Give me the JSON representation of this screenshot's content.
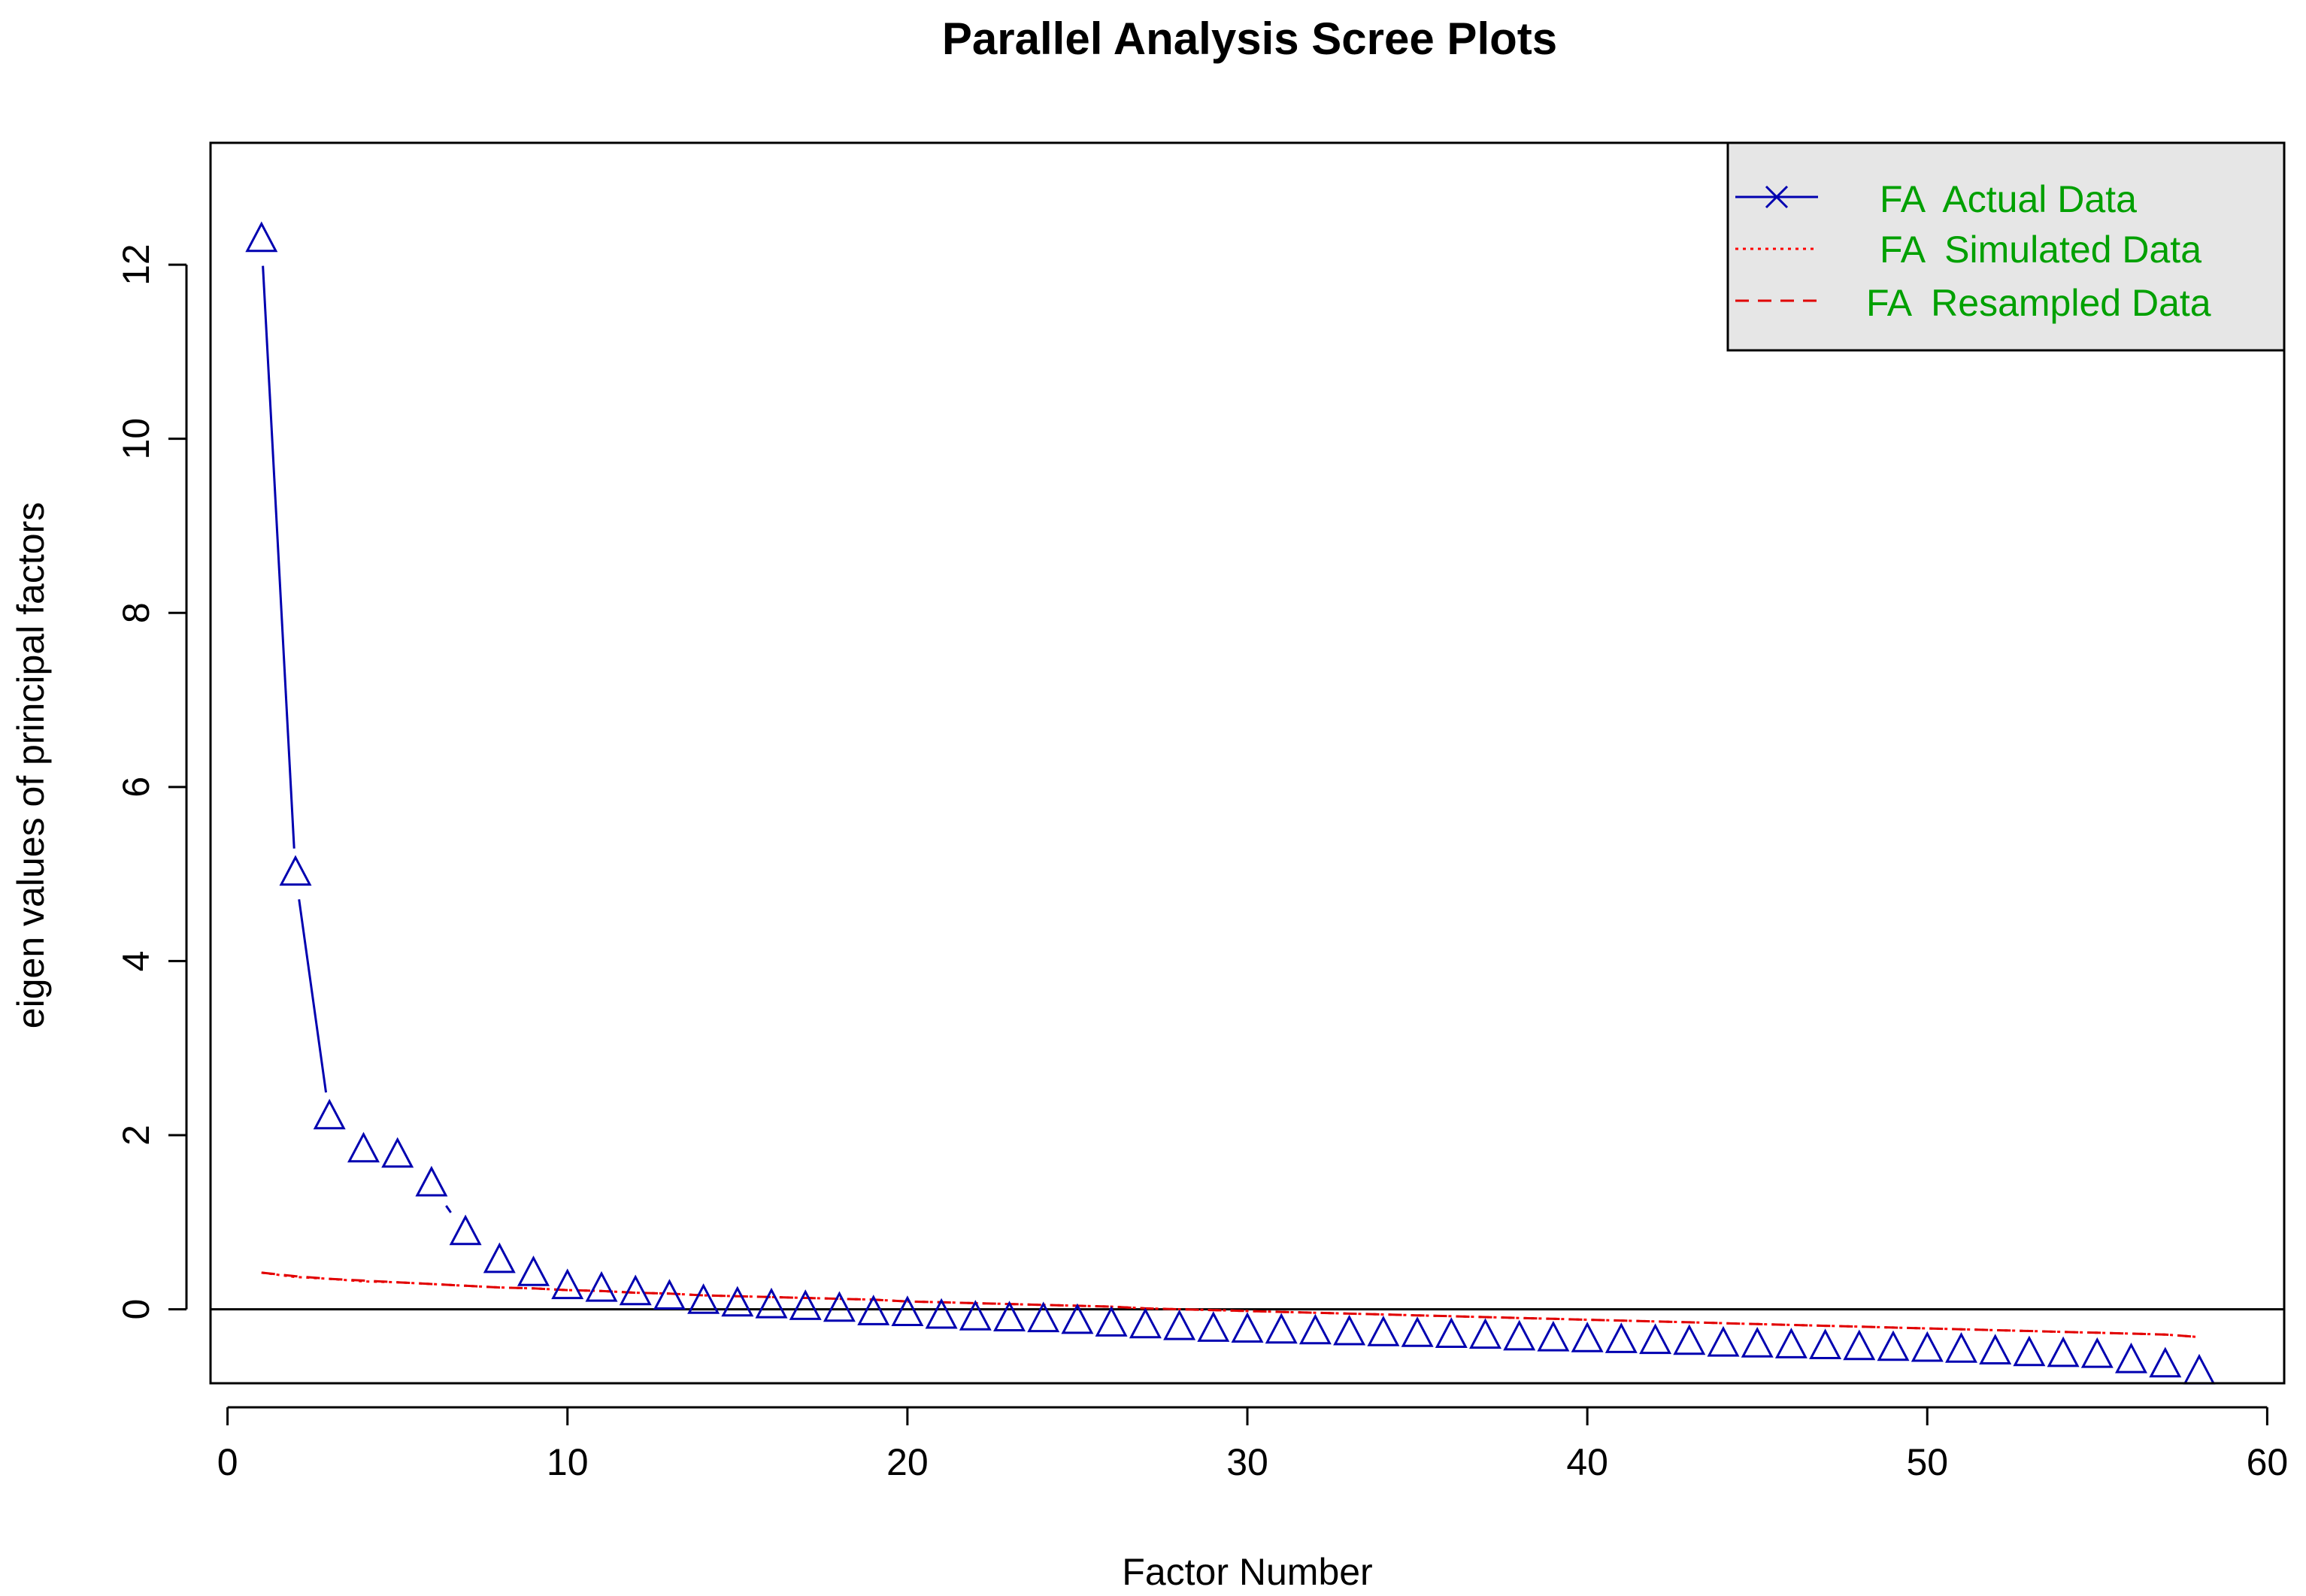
{
  "chart_data": {
    "type": "line",
    "title": "Parallel Analysis Scree Plots",
    "xlabel": "Factor Number",
    "ylabel": "eigen values of principal factors",
    "xlim": [
      -0.5,
      60.5
    ],
    "ylim": [
      -0.85,
      13.4
    ],
    "x_ticks": [
      0,
      10,
      20,
      30,
      40,
      50,
      60
    ],
    "y_ticks": [
      0,
      2,
      4,
      6,
      8,
      10,
      12
    ],
    "x_tick_labels": [
      "0",
      "10",
      "20",
      "30",
      "40",
      "50",
      "60"
    ],
    "y_tick_labels": [
      "0",
      "2",
      "4",
      "6",
      "8",
      "10",
      "12"
    ],
    "reference_line_y": 0,
    "legend_position": "top-right",
    "colors": {
      "actual": "#0000b0",
      "simulated": "#ff0000",
      "resampled": "#e00000",
      "legend_text": "#00a000",
      "legend_bg": "#e6e6e6"
    },
    "series": [
      {
        "name": "FA  Actual Data",
        "style": "solid-with-triangles",
        "x": [
          1,
          2,
          3,
          4,
          5,
          6,
          7,
          8,
          9,
          10,
          11,
          12,
          13,
          14,
          15,
          16,
          17,
          18,
          19,
          20,
          21,
          22,
          23,
          24,
          25,
          26,
          27,
          28,
          29,
          30,
          31,
          32,
          33,
          34,
          35,
          36,
          37,
          38,
          39,
          40,
          41,
          42,
          43,
          44,
          45,
          46,
          47,
          48,
          49,
          50,
          51,
          52,
          53,
          54,
          55,
          56,
          57,
          58
        ],
        "values": [
          12.28,
          5.0,
          2.2,
          1.82,
          1.76,
          1.43,
          0.87,
          0.55,
          0.4,
          0.25,
          0.22,
          0.18,
          0.13,
          0.08,
          0.05,
          0.03,
          0.01,
          -0.01,
          -0.05,
          -0.06,
          -0.09,
          -0.11,
          -0.12,
          -0.13,
          -0.15,
          -0.18,
          -0.2,
          -0.22,
          -0.24,
          -0.25,
          -0.26,
          -0.27,
          -0.28,
          -0.29,
          -0.3,
          -0.31,
          -0.32,
          -0.34,
          -0.35,
          -0.36,
          -0.37,
          -0.38,
          -0.39,
          -0.41,
          -0.42,
          -0.43,
          -0.44,
          -0.45,
          -0.46,
          -0.47,
          -0.48,
          -0.5,
          -0.52,
          -0.53,
          -0.54,
          -0.6,
          -0.65,
          -0.73
        ]
      },
      {
        "name": "FA  Simulated Data",
        "style": "dotted",
        "x": [
          1,
          2,
          3,
          4,
          5,
          6,
          7,
          8,
          9,
          10,
          11,
          12,
          13,
          14,
          15,
          16,
          17,
          18,
          19,
          20,
          21,
          22,
          23,
          24,
          25,
          26,
          27,
          28,
          29,
          30,
          31,
          32,
          33,
          34,
          35,
          36,
          37,
          38,
          39,
          40,
          41,
          42,
          43,
          44,
          45,
          46,
          47,
          48,
          49,
          50,
          51,
          52,
          53,
          54,
          55,
          56,
          57,
          58
        ],
        "values": [
          0.42,
          0.37,
          0.35,
          0.32,
          0.31,
          0.29,
          0.27,
          0.25,
          0.24,
          0.22,
          0.21,
          0.19,
          0.18,
          0.16,
          0.15,
          0.14,
          0.13,
          0.12,
          0.11,
          0.09,
          0.08,
          0.07,
          0.06,
          0.05,
          0.04,
          0.03,
          0.01,
          0.0,
          -0.01,
          -0.02,
          -0.03,
          -0.04,
          -0.05,
          -0.06,
          -0.07,
          -0.08,
          -0.09,
          -0.1,
          -0.11,
          -0.12,
          -0.13,
          -0.14,
          -0.15,
          -0.16,
          -0.17,
          -0.18,
          -0.19,
          -0.2,
          -0.21,
          -0.22,
          -0.23,
          -0.24,
          -0.25,
          -0.26,
          -0.27,
          -0.28,
          -0.29,
          -0.32
        ]
      },
      {
        "name": "FA  Resampled Data",
        "style": "dashed",
        "x": [
          1,
          2,
          3,
          4,
          5,
          6,
          7,
          8,
          9,
          10,
          11,
          12,
          13,
          14,
          15,
          16,
          17,
          18,
          19,
          20,
          21,
          22,
          23,
          24,
          25,
          26,
          27,
          28,
          29,
          30,
          31,
          32,
          33,
          34,
          35,
          36,
          37,
          38,
          39,
          40,
          41,
          42,
          43,
          44,
          45,
          46,
          47,
          48,
          49,
          50,
          51,
          52,
          53,
          54,
          55,
          56,
          57,
          58
        ],
        "values": [
          0.42,
          0.38,
          0.35,
          0.33,
          0.31,
          0.29,
          0.27,
          0.25,
          0.24,
          0.22,
          0.21,
          0.19,
          0.18,
          0.16,
          0.15,
          0.14,
          0.13,
          0.12,
          0.11,
          0.09,
          0.08,
          0.07,
          0.06,
          0.05,
          0.04,
          0.03,
          0.01,
          0.0,
          -0.01,
          -0.02,
          -0.03,
          -0.04,
          -0.05,
          -0.06,
          -0.07,
          -0.08,
          -0.09,
          -0.1,
          -0.11,
          -0.12,
          -0.13,
          -0.14,
          -0.15,
          -0.16,
          -0.17,
          -0.18,
          -0.19,
          -0.2,
          -0.21,
          -0.22,
          -0.23,
          -0.24,
          -0.25,
          -0.26,
          -0.27,
          -0.28,
          -0.29,
          -0.32
        ]
      }
    ]
  }
}
